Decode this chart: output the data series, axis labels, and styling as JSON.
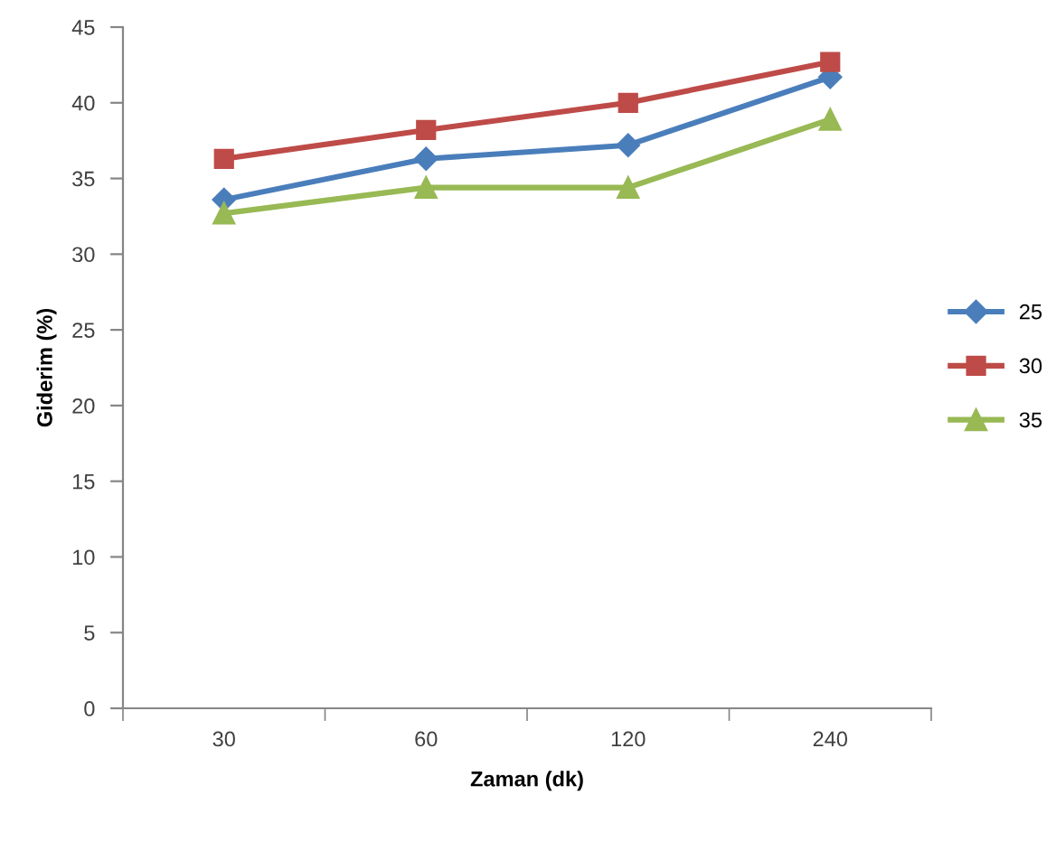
{
  "chart_data": {
    "type": "line",
    "xlabel": "Zaman (dk)",
    "ylabel": "Giderim (%)",
    "categories": [
      "30",
      "60",
      "120",
      "240"
    ],
    "series": [
      {
        "name": "25",
        "color": "#4a7ebb",
        "marker": "diamond",
        "values": [
          33.6,
          36.3,
          37.2,
          41.7
        ]
      },
      {
        "name": "30",
        "color": "#be4b48",
        "marker": "square",
        "values": [
          36.3,
          38.2,
          40.0,
          42.7
        ]
      },
      {
        "name": "35",
        "color": "#98b954",
        "marker": "triangle",
        "values": [
          32.7,
          34.4,
          34.4,
          38.9
        ]
      }
    ],
    "ylim": [
      0,
      45
    ],
    "yticks": [
      0,
      5,
      10,
      15,
      20,
      25,
      30,
      35,
      40,
      45
    ],
    "grid": false,
    "legend": "right",
    "line_style": "solid"
  }
}
